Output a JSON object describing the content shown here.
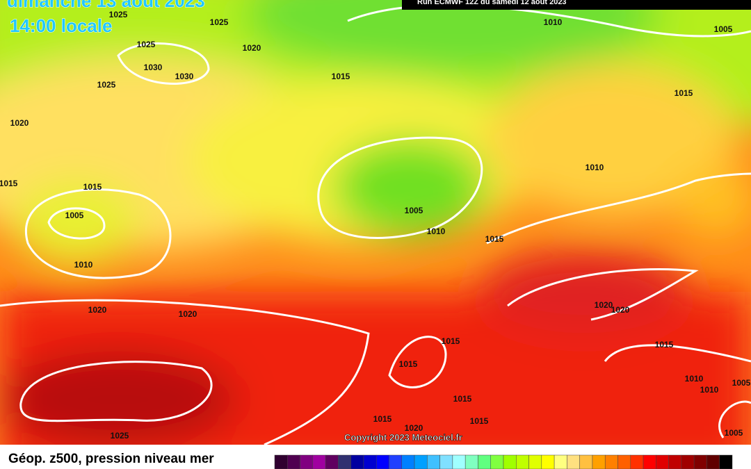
{
  "header": {
    "date": "dimanche 13 août 2023",
    "time": "14:00 locale",
    "run": "Run ECMWF 12Z du samedi 12 août 2023"
  },
  "map": {
    "isobar_labels": [
      "1025",
      "1025",
      "1010",
      "1005",
      "1025",
      "1020",
      "1030",
      "1030",
      "1015",
      "1025",
      "1015",
      "1020",
      "1010",
      "1015",
      "1015",
      "1005",
      "1005",
      "1010",
      "1015",
      "1010",
      "1020",
      "1020",
      "1020",
      "1020",
      "1015",
      "1015",
      "1015",
      "1010",
      "1005",
      "1010",
      "1015",
      "1015",
      "1020",
      "1015",
      "1025",
      "1005"
    ],
    "copyright": "Copyright 2023 Meteociel.fr"
  },
  "legend": {
    "title": "Géop. z500, pression niveau mer",
    "colors": [
      "#300030",
      "#500050",
      "#800080",
      "#a000a0",
      "#600060",
      "#303070",
      "#0000a0",
      "#0000d0",
      "#0000ff",
      "#2040ff",
      "#0080ff",
      "#00a0ff",
      "#40c0ff",
      "#80e0ff",
      "#a0ffff",
      "#80ffc0",
      "#60ff80",
      "#80ff40",
      "#a0ff00",
      "#c0ff00",
      "#e0ff00",
      "#ffff00",
      "#ffff80",
      "#ffe080",
      "#ffc040",
      "#ffa000",
      "#ff8000",
      "#ff6000",
      "#ff3000",
      "#ff0000",
      "#e00000",
      "#c00000",
      "#a00000",
      "#800000",
      "#600000",
      "#000000"
    ]
  }
}
